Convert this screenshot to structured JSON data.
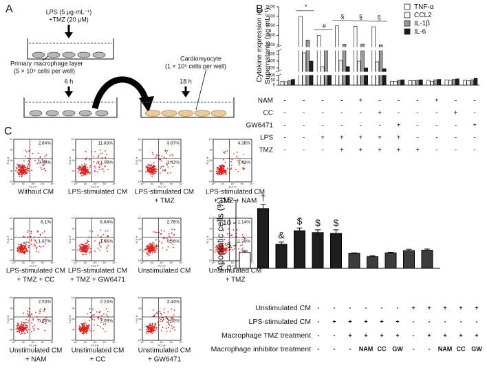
{
  "panel_labels": [
    "A",
    "B",
    "C"
  ],
  "diagram": {
    "treatment": [
      "LPS (5 μg·mL⁻¹)",
      "+TMZ (20 μM)"
    ],
    "macrophage_label": [
      "Primary macrophage layer",
      "(5 × 10⁵ cells per well)"
    ],
    "time_1": "6 h",
    "time_2": "18 h",
    "cardiomyocyte_label": [
      "Cardiomyocyte",
      "(1 × 10⁵ cells per well)"
    ]
  },
  "flow": {
    "x_axis": "FL1-H",
    "y_axis": "FL3-H",
    "ticks": [
      "10⁰",
      "10¹",
      "10²",
      "10³",
      "10⁴"
    ],
    "plots": [
      {
        "caption": [
          "Without CM"
        ],
        "upper_right": "2.64%",
        "lower_right": "0.68%"
      },
      {
        "caption": [
          "LPS-stimulated CM"
        ],
        "upper_right": "11.83%",
        "lower_right": "1.08%"
      },
      {
        "caption": [
          "LPS-stimulated CM",
          "+ TMZ"
        ],
        "upper_right": "3.87%",
        "lower_right": "1.42%"
      },
      {
        "caption": [
          "LPS-stimulated CM",
          "+ TMZ + NAM"
        ],
        "upper_right": "4.36%",
        "lower_right": "3.93%"
      },
      {
        "caption": [
          "LPS-stimulated CM",
          "+ TMZ + CC"
        ],
        "upper_right": "6.1%",
        "lower_right": "1.87%"
      },
      {
        "caption": [
          "LPS-stimulated CM",
          "+ TMZ + GW6471"
        ],
        "upper_right": "6.64%",
        "lower_right": "1.05%"
      },
      {
        "caption": [
          "Unstimulated CM"
        ],
        "upper_right": "2.76%",
        "lower_right": "0.56%"
      },
      {
        "caption": [
          "Unstimulated CM",
          "+ TMZ"
        ],
        "upper_right": "1.14%",
        "lower_right": "1.39%"
      },
      {
        "caption": [
          "Unstimulated CM",
          "+ NAM"
        ],
        "upper_right": "2.53%",
        "lower_right": "0.86%"
      },
      {
        "caption": [
          "Unstimulated CM",
          "+ CC"
        ],
        "upper_right": "2.24%",
        "lower_right": "2.09%"
      },
      {
        "caption": [
          "Unstimulated CM",
          "+ GW6471"
        ],
        "upper_right": "3.44%",
        "lower_right": "1.55%"
      }
    ]
  },
  "chart_data": [
    {
      "type": "broken-bar",
      "y_label": [
        "Cytokine expression in",
        "Supernatants (pg·mL⁻¹)"
      ],
      "categories": [
        null,
        null,
        null,
        null,
        null,
        null,
        null,
        null,
        null,
        null,
        null
      ],
      "series": [
        {
          "name": "TNF-α",
          "color": "#ffffff",
          "values": [
            40,
            4000,
            2000,
            3000,
            2950,
            2900,
            40,
            45,
            50,
            55,
            50
          ]
        },
        {
          "name": "CCL2",
          "color": "#f2f2f2",
          "values": [
            35,
            520,
            320,
            410,
            400,
            390,
            40,
            45,
            40,
            50,
            45
          ]
        },
        {
          "name": "IL-1β",
          "color": "#9a9a9a",
          "values": [
            45,
            1500,
            750,
            1050,
            1080,
            1000,
            50,
            50,
            55,
            60,
            55
          ]
        },
        {
          "name": "IL-6",
          "color": "#1e1e1e",
          "values": [
            60,
            400,
            200,
            320,
            300,
            290,
            55,
            55,
            60,
            65,
            70
          ]
        }
      ],
      "y_segments": [
        {
          "ylim": [
            0,
            100
          ],
          "yticks": [
            0,
            50,
            100
          ]
        },
        {
          "ylim": [
            250,
            550
          ],
          "yticks": [
            300,
            400,
            500
          ]
        },
        {
          "ylim": [
            800,
            5000
          ],
          "yticks": [
            1000,
            2000,
            3000,
            4000,
            5000
          ]
        }
      ],
      "annotations": [
        null,
        "*",
        "#",
        "§",
        "§",
        "§",
        null,
        null,
        null,
        null,
        null
      ],
      "legend": "upper right",
      "conditions": [
        {
          "name": "NAM",
          "signs": [
            "-",
            "-",
            "-",
            "-",
            "+",
            "-",
            "-",
            "-",
            "+",
            "-",
            "-"
          ]
        },
        {
          "name": "CC",
          "signs": [
            "-",
            "-",
            "-",
            "-",
            "-",
            "+",
            "-",
            "-",
            "-",
            "+",
            "-"
          ]
        },
        {
          "name": "GW6471",
          "signs": [
            "-",
            "-",
            "-",
            "-",
            "-",
            "-",
            "+",
            "-",
            "-",
            "-",
            "+"
          ]
        },
        {
          "name": "LPS",
          "signs": [
            "-",
            "-",
            "+",
            "+",
            "+",
            "+",
            "+",
            "-",
            "-",
            "-",
            "-"
          ]
        },
        {
          "name": "TMZ",
          "signs": [
            "-",
            "-",
            "-",
            "+",
            "+",
            "+",
            "+",
            "+",
            "-",
            "-",
            "-"
          ]
        }
      ]
    },
    {
      "type": "bar",
      "y_label": "Apoptotic cells (%)",
      "categories": [
        null,
        null,
        null,
        null,
        null,
        null,
        null,
        null,
        null,
        null,
        null
      ],
      "values": [
        3.5,
        13.2,
        5.3,
        8.3,
        7.9,
        7.7,
        3.3,
        2.6,
        3.4,
        3.9,
        4.0
      ],
      "errors": [
        0.3,
        0.9,
        0.5,
        0.6,
        0.6,
        0.8,
        0.1,
        0.15,
        0.15,
        0.3,
        0.25
      ],
      "colors": [
        "#ffffff",
        "#1e1e1e",
        "#1e1e1e",
        "#1e1e1e",
        "#1e1e1e",
        "#1e1e1e",
        "#3c3c3c",
        "#3c3c3c",
        "#3c3c3c",
        "#3c3c3c",
        "#3c3c3c"
      ],
      "ylim": [
        0,
        15
      ],
      "yticks": [
        0,
        5,
        10,
        15
      ],
      "annotations": [
        null,
        "†",
        "&",
        "$",
        "$",
        "$",
        null,
        null,
        null,
        null,
        null
      ],
      "conditions": [
        {
          "name": "Unstimulated CM",
          "signs": [
            "-",
            "-",
            "-",
            "-",
            "-",
            "-",
            "+",
            "+",
            "+",
            "+",
            "+"
          ]
        },
        {
          "name": "LPS-stimulated CM",
          "signs": [
            "-",
            "+",
            "+",
            "+",
            "+",
            "+",
            "-",
            "-",
            "-",
            "-",
            "-"
          ]
        },
        {
          "name": "Macrophage TMZ treatment",
          "signs": [
            "-",
            "-",
            "+",
            "+",
            "+",
            "+",
            "-",
            "+",
            "+",
            "+",
            "+"
          ]
        },
        {
          "name": "Macrophage inhibitor treatment",
          "signs": [
            "-",
            "-",
            "-",
            "NAM",
            "CC",
            "GW",
            "-",
            "-",
            "NAM",
            "CC",
            "GW"
          ]
        }
      ]
    }
  ]
}
